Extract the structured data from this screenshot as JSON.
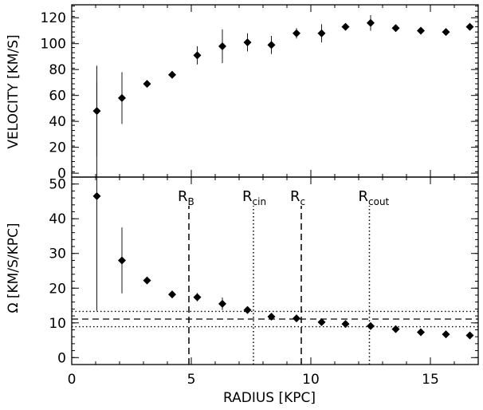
{
  "chart_data": [
    {
      "type": "scatter",
      "title": "",
      "xlabel": "",
      "ylabel": "VELOCITY [KM/S]",
      "xlim": [
        0,
        17
      ],
      "ylim": [
        -3,
        130
      ],
      "x_ticks": [],
      "y_ticks": [
        "0",
        "20",
        "40",
        "60",
        "80",
        "100",
        "120"
      ],
      "points": [
        {
          "x": 1.05,
          "y": 48,
          "err": 35
        },
        {
          "x": 2.1,
          "y": 58,
          "err": 20
        },
        {
          "x": 3.15,
          "y": 69,
          "err": 0
        },
        {
          "x": 4.2,
          "y": 76,
          "err": 0
        },
        {
          "x": 5.25,
          "y": 91,
          "err": 7
        },
        {
          "x": 6.3,
          "y": 98,
          "err": 13
        },
        {
          "x": 7.35,
          "y": 101,
          "err": 7
        },
        {
          "x": 8.35,
          "y": 99,
          "err": 7
        },
        {
          "x": 9.4,
          "y": 108,
          "err": 4
        },
        {
          "x": 10.45,
          "y": 108,
          "err": 7
        },
        {
          "x": 11.45,
          "y": 113,
          "err": 0
        },
        {
          "x": 12.5,
          "y": 116,
          "err": 6
        },
        {
          "x": 13.55,
          "y": 112,
          "err": 0
        },
        {
          "x": 14.6,
          "y": 110,
          "err": 0
        },
        {
          "x": 15.65,
          "y": 109,
          "err": 0
        },
        {
          "x": 16.65,
          "y": 113,
          "err": 0
        }
      ]
    },
    {
      "type": "scatter",
      "title": "",
      "xlabel": "RADIUS [KPC]",
      "ylabel": "Ω [KM/S/KPC]",
      "xlim": [
        0,
        17
      ],
      "ylim": [
        -2,
        52
      ],
      "x_ticks": [
        "0",
        "5",
        "10",
        "15"
      ],
      "y_ticks": [
        "0",
        "10",
        "20",
        "30",
        "40",
        "50"
      ],
      "points": [
        {
          "x": 1.05,
          "y": 46.5,
          "err": 33
        },
        {
          "x": 2.1,
          "y": 28,
          "err": 9.5
        },
        {
          "x": 3.15,
          "y": 22.2,
          "err": 0
        },
        {
          "x": 4.2,
          "y": 18.2,
          "err": 0
        },
        {
          "x": 5.25,
          "y": 17.4,
          "err": 1.2
        },
        {
          "x": 6.3,
          "y": 15.5,
          "err": 1.8
        },
        {
          "x": 7.35,
          "y": 13.7,
          "err": 1
        },
        {
          "x": 8.35,
          "y": 11.8,
          "err": 0.6
        },
        {
          "x": 9.4,
          "y": 11.3,
          "err": 0.4
        },
        {
          "x": 10.45,
          "y": 10.2,
          "err": 0.5
        },
        {
          "x": 11.45,
          "y": 9.7,
          "err": 0
        },
        {
          "x": 12.5,
          "y": 9.1,
          "err": 0.4
        },
        {
          "x": 13.55,
          "y": 8.2,
          "err": 0
        },
        {
          "x": 14.6,
          "y": 7.3,
          "err": 0
        },
        {
          "x": 15.65,
          "y": 6.7,
          "err": 0
        },
        {
          "x": 16.65,
          "y": 6.4,
          "err": 0
        }
      ],
      "hlines": [
        {
          "y": 11.1,
          "style": "dashed"
        },
        {
          "y": 13.3,
          "style": "dotted"
        },
        {
          "y": 8.9,
          "style": "dotted"
        }
      ],
      "vlines": [
        {
          "x": 4.9,
          "style": "dashed",
          "label": "R",
          "sub": "B"
        },
        {
          "x": 7.6,
          "style": "dotted",
          "label": "R",
          "sub": "cin"
        },
        {
          "x": 9.6,
          "style": "dashed",
          "label": "R",
          "sub": "c"
        },
        {
          "x": 12.45,
          "style": "dotted",
          "label": "R",
          "sub": "cout"
        }
      ]
    }
  ]
}
